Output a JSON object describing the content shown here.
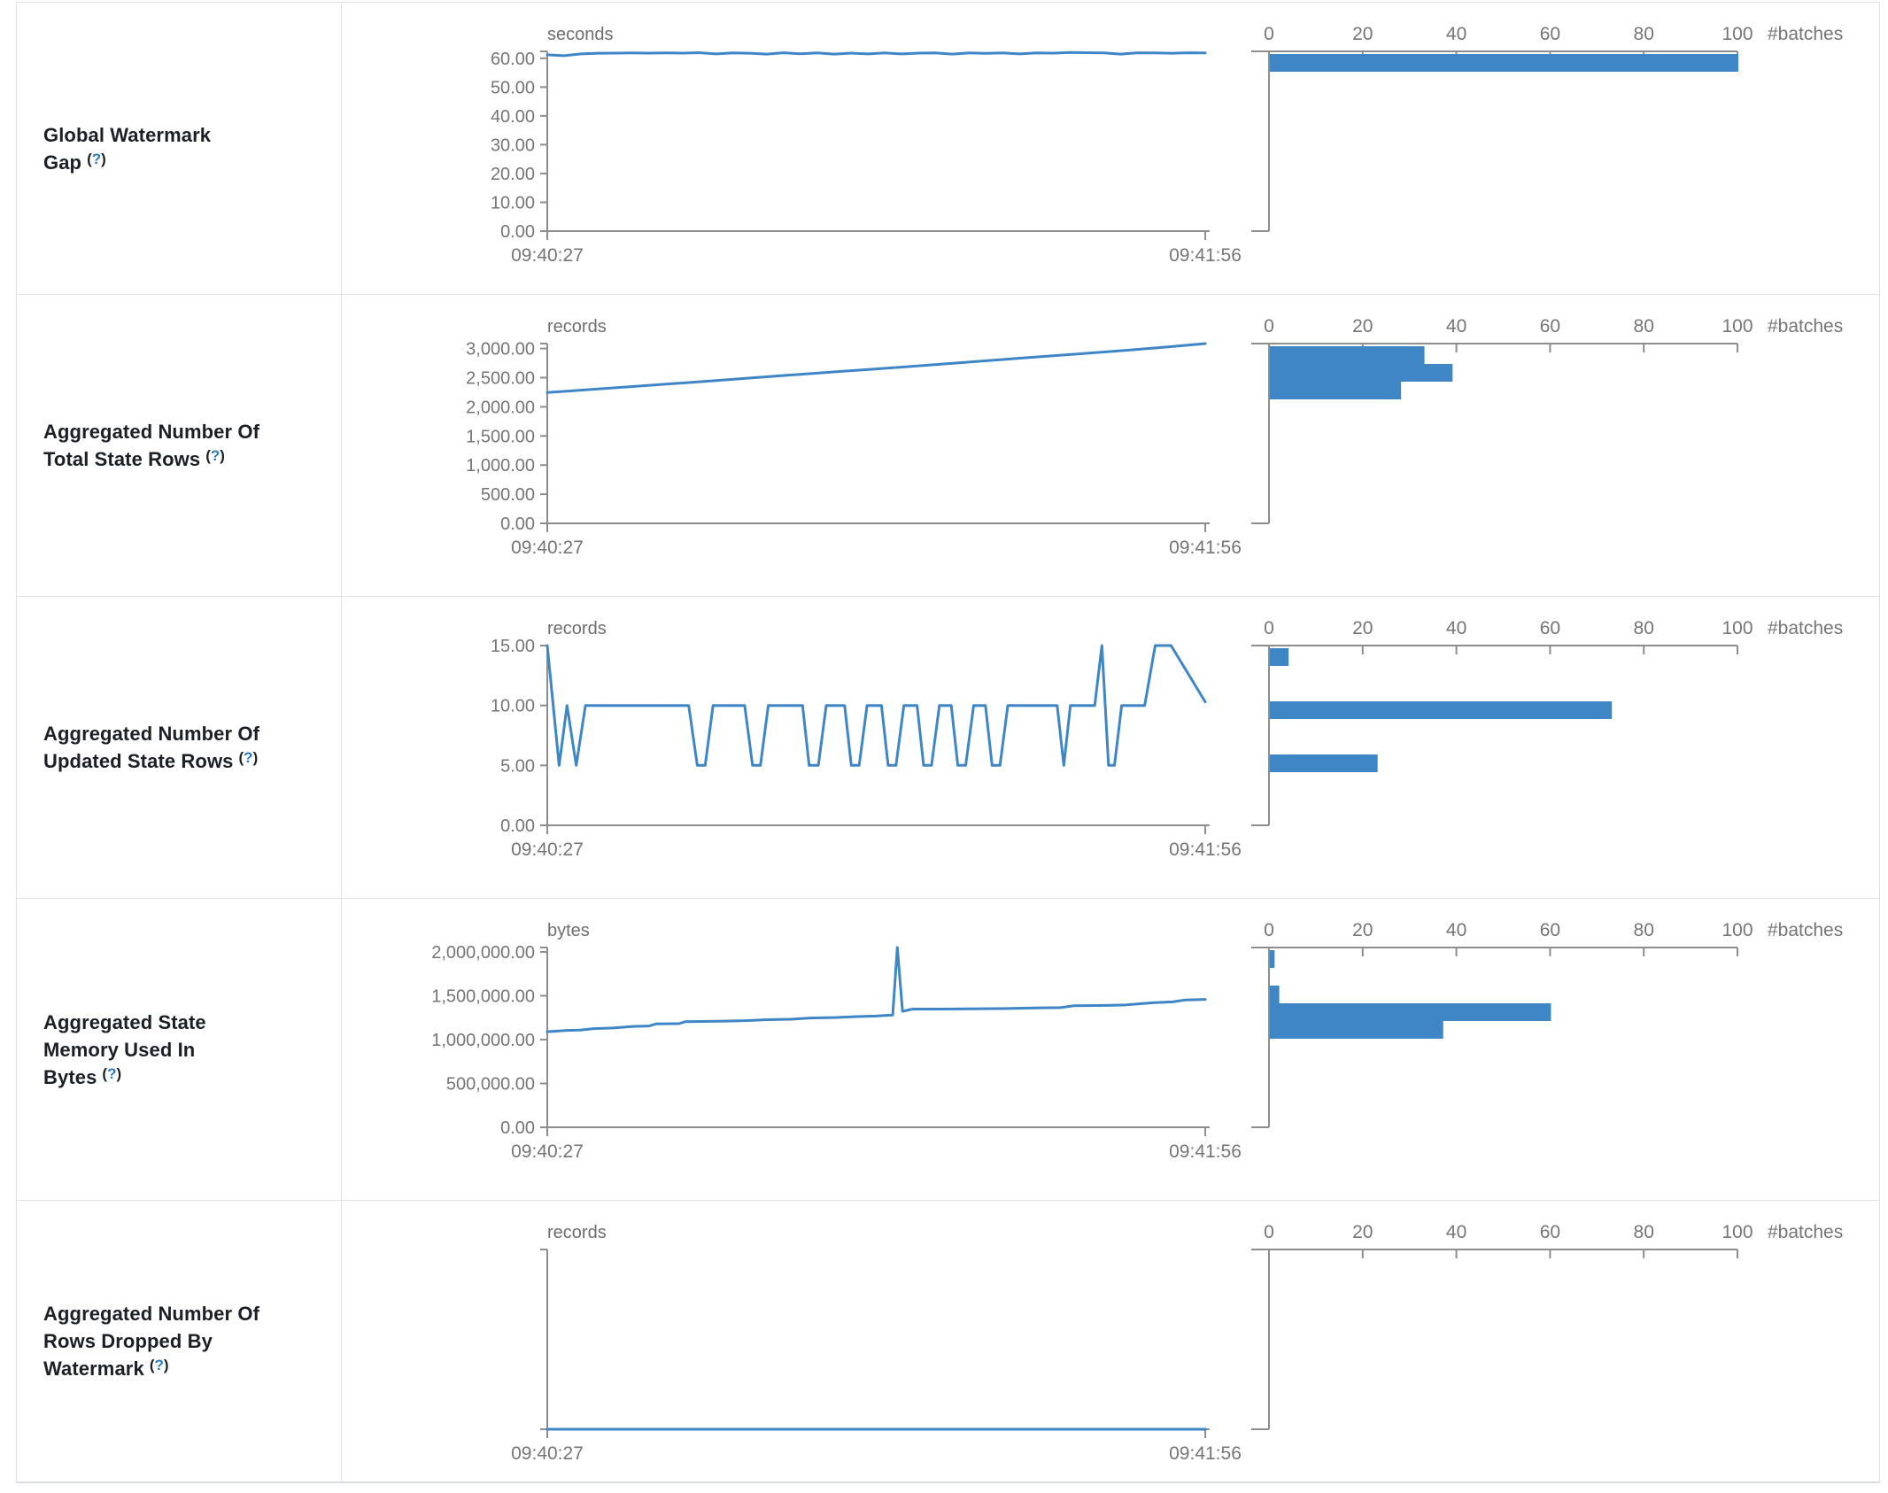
{
  "page": {
    "accent_blue": "#3e86c6",
    "axis_gray": "#8d8d8d",
    "tick_text_gray": "#757575",
    "border_gray": "#dee2e6",
    "background": "#ffffff"
  },
  "rows": [
    {
      "label": "Global Watermark Gap",
      "help": "?"
    },
    {
      "label": "Aggregated Number Of Total State Rows",
      "help": "?"
    },
    {
      "label": "Aggregated Number Of Updated State Rows",
      "help": "?"
    },
    {
      "label": "Aggregated State Memory Used In Bytes",
      "help": "?"
    },
    {
      "label": "Aggregated Number Of Rows Dropped By Watermark",
      "help": "?"
    }
  ],
  "chart_data": [
    {
      "metric": "Global Watermark Gap",
      "timeline": {
        "type": "line",
        "unit": "seconds",
        "x_labels": [
          "09:40:27",
          "09:41:56"
        ],
        "ymax": 62.4,
        "top_end_tick": true,
        "yticks": [
          {
            "v": 0,
            "label": "0.00"
          },
          {
            "v": 10,
            "label": "10.00"
          },
          {
            "v": 20,
            "label": "20.00"
          },
          {
            "v": 30,
            "label": "30.00"
          },
          {
            "v": 40,
            "label": "40.00"
          },
          {
            "v": 50,
            "label": "50.00"
          },
          {
            "v": 60,
            "label": "60.00"
          }
        ],
        "points": [
          61.2,
          60.9,
          61.5,
          61.75,
          61.8,
          61.85,
          61.8,
          61.85,
          61.8,
          61.95,
          61.5,
          61.85,
          61.75,
          61.45,
          61.9,
          61.55,
          61.85,
          61.45,
          61.8,
          61.5,
          61.85,
          61.5,
          61.8,
          61.85,
          61.45,
          61.85,
          61.7,
          61.85,
          61.5,
          61.85,
          61.8,
          62.0,
          61.95,
          61.85,
          61.45,
          61.9,
          61.85,
          61.75,
          61.9,
          61.85
        ]
      },
      "histogram": {
        "type": "bar",
        "axis_label": "#batches",
        "ticks": [
          {
            "v": 0,
            "label": "0"
          },
          {
            "v": 20,
            "label": "20"
          },
          {
            "v": 40,
            "label": "40"
          },
          {
            "v": 60,
            "label": "60"
          },
          {
            "v": 80,
            "label": "80"
          },
          {
            "v": 100,
            "label": "100"
          }
        ],
        "bars": [
          {
            "slot": 0,
            "value": 100
          }
        ]
      }
    },
    {
      "metric": "Aggregated Number Of Total State Rows",
      "timeline": {
        "type": "line",
        "unit": "records",
        "x_labels": [
          "09:40:27",
          "09:41:56"
        ],
        "ymax": 3085,
        "top_end_tick": true,
        "yticks": [
          {
            "v": 0,
            "label": "0.00"
          },
          {
            "v": 500,
            "label": "500.00"
          },
          {
            "v": 1000,
            "label": "1,000.00"
          },
          {
            "v": 1500,
            "label": "1,500.00"
          },
          {
            "v": 2000,
            "label": "2,000.00"
          },
          {
            "v": 2500,
            "label": "2,500.00"
          },
          {
            "v": 3000,
            "label": "3,000.00"
          }
        ],
        "points": [
          2245,
          2295,
          2345,
          2395,
          2445,
          2498,
          2550,
          2600,
          2650,
          2700,
          2755,
          2808,
          2860,
          2912,
          2965,
          3022,
          3085
        ]
      },
      "histogram": {
        "type": "bar",
        "axis_label": "#batches",
        "ticks": [
          {
            "v": 0,
            "label": "0"
          },
          {
            "v": 20,
            "label": "20"
          },
          {
            "v": 40,
            "label": "40"
          },
          {
            "v": 60,
            "label": "60"
          },
          {
            "v": 80,
            "label": "80"
          },
          {
            "v": 100,
            "label": "100"
          }
        ],
        "bars": [
          {
            "slot": 0,
            "value": 33
          },
          {
            "slot": 1,
            "value": 39
          },
          {
            "slot": 2,
            "value": 28
          }
        ]
      }
    },
    {
      "metric": "Aggregated Number Of Updated State Rows",
      "timeline": {
        "type": "line",
        "unit": "records",
        "x_labels": [
          "09:40:27",
          "09:41:56"
        ],
        "ymax": 15,
        "top_end_tick": false,
        "yticks": [
          {
            "v": 0,
            "label": "0.00"
          },
          {
            "v": 5,
            "label": "5.00"
          },
          {
            "v": 10,
            "label": "10.00"
          },
          {
            "v": 15,
            "label": "15.00"
          }
        ],
        "points": [
          [
            0,
            15
          ],
          [
            0.018,
            5
          ],
          [
            0.03,
            10
          ],
          [
            0.044,
            5
          ],
          [
            0.058,
            10
          ],
          [
            0.215,
            10
          ],
          [
            0.228,
            5
          ],
          [
            0.24,
            5
          ],
          [
            0.252,
            10
          ],
          [
            0.3,
            10
          ],
          [
            0.312,
            5
          ],
          [
            0.324,
            5
          ],
          [
            0.336,
            10
          ],
          [
            0.388,
            10
          ],
          [
            0.398,
            5
          ],
          [
            0.412,
            5
          ],
          [
            0.424,
            10
          ],
          [
            0.452,
            10
          ],
          [
            0.462,
            5
          ],
          [
            0.474,
            5
          ],
          [
            0.486,
            10
          ],
          [
            0.508,
            10
          ],
          [
            0.518,
            5
          ],
          [
            0.53,
            5
          ],
          [
            0.542,
            10
          ],
          [
            0.562,
            10
          ],
          [
            0.572,
            5
          ],
          [
            0.584,
            5
          ],
          [
            0.596,
            10
          ],
          [
            0.614,
            10
          ],
          [
            0.624,
            5
          ],
          [
            0.636,
            5
          ],
          [
            0.648,
            10
          ],
          [
            0.666,
            10
          ],
          [
            0.676,
            5
          ],
          [
            0.688,
            5
          ],
          [
            0.7,
            10
          ],
          [
            0.775,
            10
          ],
          [
            0.785,
            5
          ],
          [
            0.795,
            10
          ],
          [
            0.832,
            10
          ],
          [
            0.843,
            15
          ],
          [
            0.853,
            5
          ],
          [
            0.862,
            5
          ],
          [
            0.873,
            10
          ],
          [
            0.908,
            10
          ],
          [
            0.924,
            15
          ],
          [
            0.948,
            15
          ],
          [
            1,
            10.3
          ]
        ]
      },
      "histogram": {
        "type": "bar",
        "axis_label": "#batches",
        "ticks": [
          {
            "v": 0,
            "label": "0"
          },
          {
            "v": 20,
            "label": "20"
          },
          {
            "v": 40,
            "label": "40"
          },
          {
            "v": 60,
            "label": "60"
          },
          {
            "v": 80,
            "label": "80"
          },
          {
            "v": 100,
            "label": "100"
          }
        ],
        "bars": [
          {
            "slot": 0,
            "value": 4
          },
          {
            "slot": 3,
            "value": 73
          },
          {
            "slot": 6,
            "value": 23
          }
        ]
      }
    },
    {
      "metric": "Aggregated State Memory Used In Bytes",
      "timeline": {
        "type": "line",
        "unit": "bytes",
        "x_labels": [
          "09:40:27",
          "09:41:56"
        ],
        "ymax": 2050000,
        "top_end_tick": true,
        "yticks": [
          {
            "v": 0,
            "label": "0.00"
          },
          {
            "v": 500000,
            "label": "500,000.00"
          },
          {
            "v": 1000000,
            "label": "1,000,000.00"
          },
          {
            "v": 1500000,
            "label": "1,500,000.00"
          },
          {
            "v": 2000000,
            "label": "2,000,000.00"
          }
        ],
        "points": [
          [
            0,
            1090000
          ],
          [
            0.03,
            1105000
          ],
          [
            0.05,
            1108000
          ],
          [
            0.07,
            1125000
          ],
          [
            0.1,
            1132000
          ],
          [
            0.13,
            1150000
          ],
          [
            0.155,
            1155000
          ],
          [
            0.165,
            1178000
          ],
          [
            0.2,
            1182000
          ],
          [
            0.21,
            1205000
          ],
          [
            0.26,
            1210000
          ],
          [
            0.3,
            1216000
          ],
          [
            0.33,
            1226000
          ],
          [
            0.37,
            1232000
          ],
          [
            0.4,
            1246000
          ],
          [
            0.44,
            1252000
          ],
          [
            0.47,
            1262000
          ],
          [
            0.5,
            1268000
          ],
          [
            0.515,
            1276000
          ],
          [
            0.525,
            1280000
          ],
          [
            0.532,
            2050000
          ],
          [
            0.54,
            1322000
          ],
          [
            0.555,
            1348000
          ],
          [
            0.6,
            1348000
          ],
          [
            0.66,
            1352000
          ],
          [
            0.7,
            1354000
          ],
          [
            0.75,
            1362000
          ],
          [
            0.78,
            1364000
          ],
          [
            0.8,
            1386000
          ],
          [
            0.85,
            1390000
          ],
          [
            0.88,
            1396000
          ],
          [
            0.92,
            1420000
          ],
          [
            0.95,
            1430000
          ],
          [
            0.97,
            1452000
          ],
          [
            1,
            1458000
          ]
        ]
      },
      "histogram": {
        "type": "bar",
        "axis_label": "#batches",
        "ticks": [
          {
            "v": 0,
            "label": "0"
          },
          {
            "v": 20,
            "label": "20"
          },
          {
            "v": 40,
            "label": "40"
          },
          {
            "v": 60,
            "label": "60"
          },
          {
            "v": 80,
            "label": "80"
          },
          {
            "v": 100,
            "label": "100"
          }
        ],
        "bars": [
          {
            "slot": 0,
            "value": 1
          },
          {
            "slot": 2,
            "value": 2
          },
          {
            "slot": 3,
            "value": 60
          },
          {
            "slot": 4,
            "value": 37
          }
        ]
      }
    },
    {
      "metric": "Aggregated Number Of Rows Dropped By Watermark",
      "timeline": {
        "type": "line",
        "unit": "records",
        "x_labels": [
          "09:40:27",
          "09:41:56"
        ],
        "ymax": 1,
        "top_end_tick": false,
        "axis_end_ticks": true,
        "yticks": [],
        "points": [
          [
            0,
            0
          ],
          [
            1,
            0
          ]
        ]
      },
      "histogram": {
        "type": "bar",
        "axis_label": "#batches",
        "ticks": [
          {
            "v": 0,
            "label": "0"
          },
          {
            "v": 20,
            "label": "20"
          },
          {
            "v": 40,
            "label": "40"
          },
          {
            "v": 60,
            "label": "60"
          },
          {
            "v": 80,
            "label": "80"
          },
          {
            "v": 100,
            "label": "100"
          }
        ],
        "bars": []
      }
    }
  ]
}
